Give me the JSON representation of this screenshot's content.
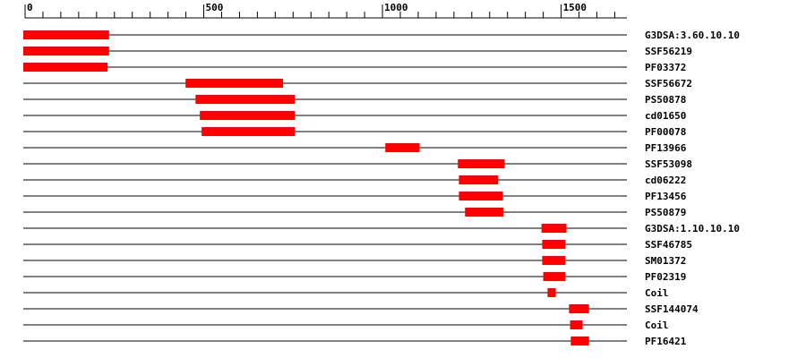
{
  "chart_data": {
    "type": "range",
    "xlim": [
      0,
      1684
    ],
    "xticks": [
      0,
      500,
      1000,
      1500
    ],
    "minor_xticks": [
      50,
      100,
      150,
      200,
      250,
      300,
      350,
      400,
      450,
      550,
      600,
      650,
      700,
      750,
      800,
      850,
      900,
      950,
      1050,
      1100,
      1150,
      1200,
      1250,
      1300,
      1350,
      1400,
      1450,
      1550,
      1600,
      1650
    ],
    "color": "#ff0000",
    "rows": [
      {
        "label": "G3DSA:3.60.10.10",
        "start": 0,
        "end": 240
      },
      {
        "label": "SSF56219",
        "start": 0,
        "end": 240
      },
      {
        "label": "PF03372",
        "start": 0,
        "end": 236
      },
      {
        "label": "SSF56672",
        "start": 454,
        "end": 727
      },
      {
        "label": "PS50878",
        "start": 482,
        "end": 760
      },
      {
        "label": "cd01650",
        "start": 494,
        "end": 760
      },
      {
        "label": "PF00078",
        "start": 499,
        "end": 760
      },
      {
        "label": "PF13966",
        "start": 1013,
        "end": 1109
      },
      {
        "label": "SSF53098",
        "start": 1216,
        "end": 1347
      },
      {
        "label": "cd06222",
        "start": 1219,
        "end": 1329
      },
      {
        "label": "PF13456",
        "start": 1219,
        "end": 1342
      },
      {
        "label": "PS50879",
        "start": 1236,
        "end": 1344
      },
      {
        "label": "G3DSA:1.10.10.10",
        "start": 1450,
        "end": 1520
      },
      {
        "label": "SSF46785",
        "start": 1452,
        "end": 1517
      },
      {
        "label": "SM01372",
        "start": 1452,
        "end": 1517
      },
      {
        "label": "PF02319",
        "start": 1455,
        "end": 1517
      },
      {
        "label": "Coil",
        "start": 1467,
        "end": 1490
      },
      {
        "label": "SSF144074",
        "start": 1527,
        "end": 1583
      },
      {
        "label": "Coil",
        "start": 1530,
        "end": 1565
      },
      {
        "label": "PF16421",
        "start": 1532,
        "end": 1583
      }
    ]
  }
}
